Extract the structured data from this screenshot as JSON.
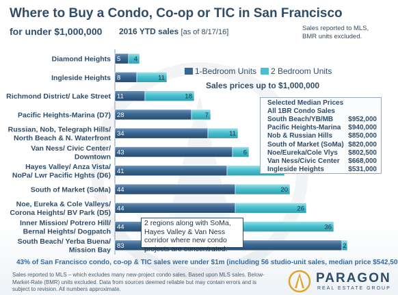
{
  "header": {
    "title": "Where to Buy a Condo, Co-op or TIC in San Francisco",
    "subtitle": "for under $1,000,000",
    "ytd_label": "2016 YTD sales",
    "ytd_date": "[as of 8/17/16]",
    "mls_note": "Sales reported to MLS, BMR units excluded."
  },
  "chart_data": {
    "type": "bar",
    "orientation": "horizontal",
    "stacked": true,
    "categories": [
      "Diamond Heights",
      "Ingleside Heights",
      "Richmond District/ Lake Street",
      "Pacific Heights-Marina (D7)",
      "Russian, Nob, Telegraph Hills/ North Beach & N. Waterfront",
      "Van Ness/ Civic Center/ Downtown",
      "Hayes Valley/ Anza Vista/ NoPa/ Lwr Pacific Hghts (D6)",
      "South of Market (SoMa)",
      "Noe, Eureka & Cole Valleys/ Corona Heights/ BV Park (D5)",
      "Inner Mission/ Potrero Hill/ Bernal Heights/ Dogpatch",
      "South Beach/ Yerba Buena/ Mission Bay"
    ],
    "category_lines": [
      [
        "Diamond Heights"
      ],
      [
        "Ingleside Heights"
      ],
      [
        "Richmond District/ Lake Street"
      ],
      [
        "Pacific Heights-Marina (D7)"
      ],
      [
        "Russian, Nob, Telegraph Hills/",
        "North Beach & N. Waterfront"
      ],
      [
        "Van Ness/ Civic Center/",
        "Downtown"
      ],
      [
        "Hayes Valley/ Anza Vista/",
        "NoPa/ Lwr Pacific Hghts (D6)"
      ],
      [
        "South of Market (SoMa)"
      ],
      [
        "Noe, Eureka & Cole Valleys/",
        "Corona Heights/ BV Park (D5)"
      ],
      [
        "Inner Mission/ Potrero Hill/",
        "Bernal Heights/ Dogpatch"
      ],
      [
        "South Beach/ Yerba Buena/",
        "Mission Bay"
      ]
    ],
    "series": [
      {
        "name": "1-Bedroom Units",
        "color": "#3a6791",
        "values": [
          5,
          8,
          11,
          28,
          34,
          43,
          41,
          44,
          44,
          44,
          83
        ]
      },
      {
        "name": "2 Bedroom Units",
        "color": "#49c0cf",
        "values": [
          4,
          11,
          18,
          7,
          11,
          6,
          21,
          20,
          26,
          36,
          2
        ]
      }
    ],
    "xlim": [
      0,
      100
    ],
    "legend_position": "top",
    "grid": false,
    "annotation": "Sales prices up to $1,000,000"
  },
  "median_box": {
    "title_line1": "Selected Median Prices",
    "title_line2": "All 1BR Condo Sales",
    "rows": [
      {
        "label": "South Beach/YB/MB",
        "value": "$952,000"
      },
      {
        "label": "Pacific Heights-Marina",
        "value": "$940,000"
      },
      {
        "label": "Nob & Russian Hills",
        "value": "$850,000"
      },
      {
        "label": "South of Market (SoMa)",
        "value": "$820,000"
      },
      {
        "label": "Noe/Eureka/Cole Vlys",
        "value": "$802,500"
      },
      {
        "label": "Van Ness/Civic Center",
        "value": "$668,000"
      },
      {
        "label": "Ingleside Heights",
        "value": "$531,000"
      }
    ]
  },
  "region_callout": "2 regions along with SoMa, Hayes Valley & Van Ness corridor where new condo projects are concentrated.",
  "stat_line": "43% of San Francisco condo, co-op & TIC sales were under $1m (including 56 studio-unit sales, median price $542,500).",
  "footer_note": "Sales reported to MLS – which excludes many new-project condo sales. Based upon MLS sales. Below-Market-Rate (BMR) units excluded. Data from sources deemed reliable but may contain errors and is subject to revision. All numbers approximate.",
  "logo": {
    "brand": "PARAGON",
    "tagline": "REAL ESTATE GROUP"
  }
}
